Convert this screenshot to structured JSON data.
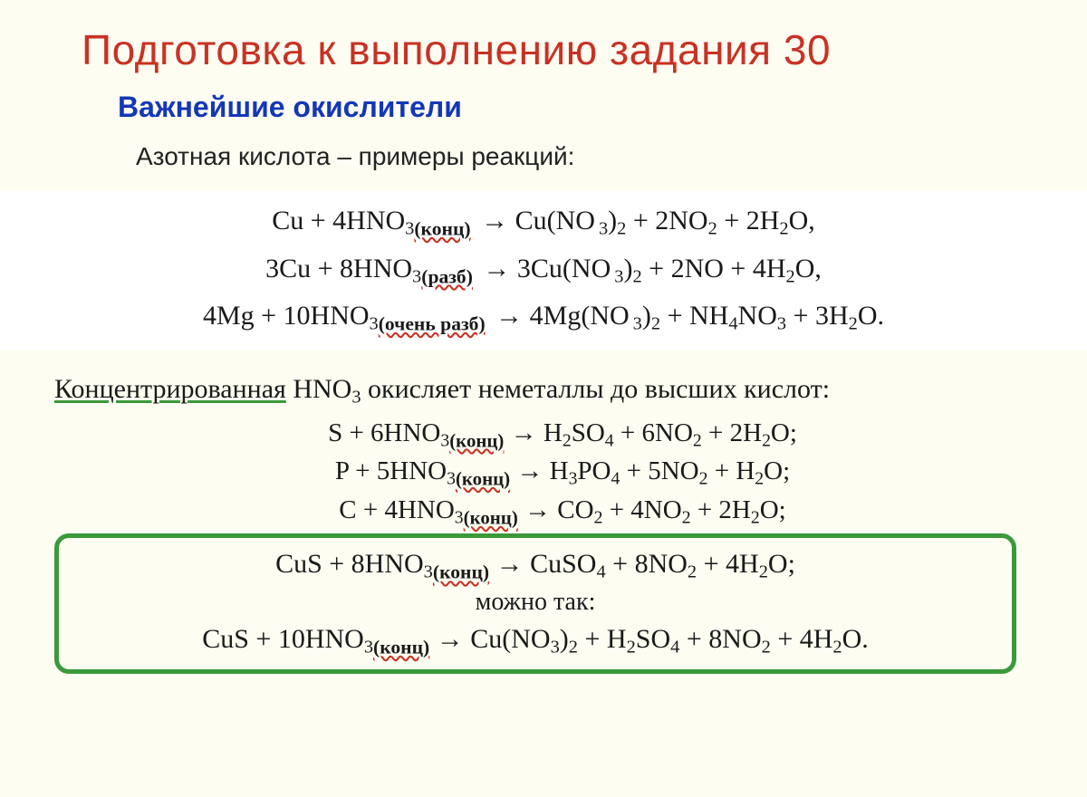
{
  "colors": {
    "background": "#fdfdf2",
    "title": "#c83224",
    "subtitle": "#1437b8",
    "text": "#1a1a1a",
    "highlight_border": "#3a9a3a",
    "underline_green": "#3a9a3a",
    "underline_red": "#c83224",
    "white_block": "#ffffff"
  },
  "typography": {
    "title_fontsize": 46,
    "subtitle_fontsize": 32,
    "section_fontsize": 28,
    "equation_fontsize": 30,
    "font_serif": "Times New Roman",
    "font_sans": "Arial"
  },
  "title": "Подготовка к выполнению задания 30",
  "subtitle": "Важнейшие окислители",
  "section1_label": "Азотная кислота – примеры реакций:",
  "ann": {
    "konc": "(конц)",
    "razb": "(разб)",
    "very_razb": "(очень разб)"
  },
  "equations_block1": {
    "eq1": {
      "lhs_a": "Cu + 4HNO",
      "sub1": "3",
      "rhs": " → Cu(NO",
      "sub2": "3",
      "rhs2": ")",
      "sub3": "2",
      "rhs3": " + 2NO",
      "sub4": "2",
      "rhs4": " + 2H",
      "sub5": "2",
      "rhs5": "O,"
    },
    "eq2": {
      "lhs_a": "3Cu + 8HNO",
      "sub1": "3",
      "rhs": " → 3Cu(NO",
      "sub2": "3",
      "rhs2": ")",
      "sub3": "2",
      "rhs3": " + 2NO + 4H",
      "sub4": "2",
      "rhs4": "O,"
    },
    "eq3": {
      "lhs_a": "4Mg + 10HNO",
      "sub1": "3",
      "rhs": " → 4Mg(NO",
      "sub2": "3",
      "rhs2": ")",
      "sub3": "2",
      "rhs3": " + NH",
      "sub4": "4",
      "rhs4": "NO",
      "sub5": "3",
      "rhs5": " + 3H",
      "sub6": "2",
      "rhs6": "O."
    }
  },
  "paragraph2": {
    "underlined": "Концентрированная",
    "rest_a": " HNO",
    "sub": "3",
    "rest_b": " окисляет неметаллы до высших кислот:"
  },
  "equations_block2": {
    "eq1": {
      "lhs": "S + 6HNO",
      "sub1": "3",
      "rhs": " → H",
      "sub2": "2",
      "rhs2": "SO",
      "sub3": "4",
      "rhs3": " + 6NO",
      "sub4": "2",
      "rhs4": " + 2H",
      "sub5": "2",
      "rhs5": "O;"
    },
    "eq2": {
      "lhs": "P + 5HNO",
      "sub1": "3",
      "rhs": " → H",
      "sub2": "3",
      "rhs2": "PO",
      "sub3": "4",
      "rhs3": " + 5NO",
      "sub4": "2",
      "rhs4": " + H",
      "sub5": "2",
      "rhs5": "O;"
    },
    "eq3": {
      "lhs": "C + 4HNO",
      "sub1": "3",
      "rhs": " → CO",
      "sub2": "2",
      "rhs2": " + 4NO",
      "sub3": "2",
      "rhs3": " + 2H",
      "sub4": "2",
      "rhs4": "O;"
    }
  },
  "highlight": {
    "eq1": {
      "lhs": "CuS + 8HNO",
      "sub1": "3",
      "rhs": " → CuSO",
      "sub2": "4",
      "rhs2": " + 8NO",
      "sub3": "2",
      "rhs3": " + 4H",
      "sub4": "2",
      "rhs4": "O;"
    },
    "note": "можно так:",
    "eq2": {
      "lhs": "CuS + 10HNO",
      "sub1": "3",
      "rhs": " → Cu(NO",
      "sub2": "3",
      "rhs2": ")",
      "sub3": "2",
      "rhs3": " + H",
      "sub4": "2",
      "rhs4": "SO",
      "sub5": "4",
      "rhs5": " + 8NO",
      "sub6": "2",
      "rhs6": " + 4H",
      "sub7": "2",
      "rhs7": "O."
    }
  }
}
